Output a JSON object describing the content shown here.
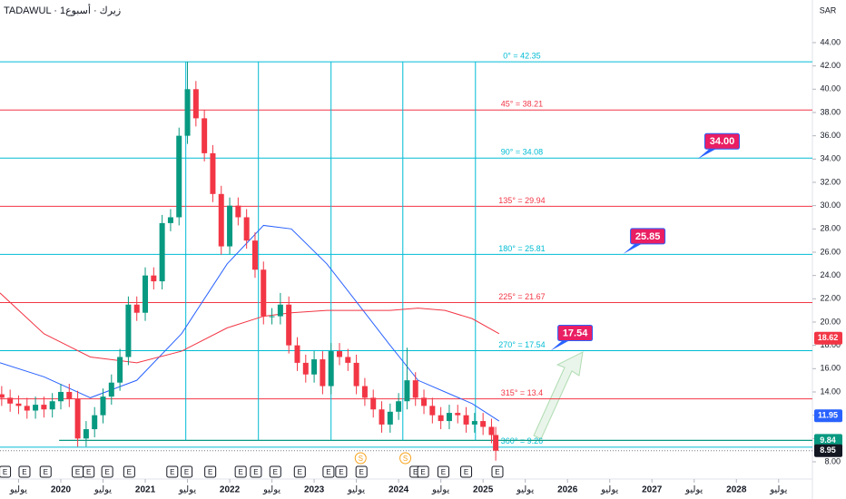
{
  "chart_data": {
    "type": "candlestick",
    "title": "TADAWUL · زيرك · أسبوع1",
    "currency": "SAR",
    "up_color": "#089981",
    "down_color": "#f23645",
    "x": [
      2019.3,
      2019.4,
      2019.5,
      2019.6,
      2019.7,
      2019.8,
      2019.9,
      2020.0,
      2020.1,
      2020.2,
      2020.3,
      2020.4,
      2020.5,
      2020.6,
      2020.7,
      2020.8,
      2020.9,
      2021.0,
      2021.1,
      2021.2,
      2021.3,
      2021.4,
      2021.5,
      2021.6,
      2021.7,
      2021.8,
      2021.9,
      2022.0,
      2022.1,
      2022.2,
      2022.3,
      2022.4,
      2022.5,
      2022.6,
      2022.7,
      2022.8,
      2022.9,
      2023.0,
      2023.1,
      2023.2,
      2023.3,
      2023.4,
      2023.5,
      2023.6,
      2023.7,
      2023.8,
      2023.9,
      2024.0,
      2024.1,
      2024.2,
      2024.3,
      2024.4,
      2024.5,
      2024.6,
      2024.7,
      2024.8,
      2024.9,
      2025.0,
      2025.1,
      2025.15
    ],
    "open": [
      13.8,
      13.5,
      13,
      12.8,
      12.4,
      12.9,
      12.5,
      13.2,
      14.0,
      13.4,
      10.0,
      10.8,
      12.0,
      13.6,
      14.8,
      17.0,
      21.5,
      20.8,
      24.0,
      23.5,
      28.5,
      29.0,
      36.0,
      40.0,
      37.5,
      34.5,
      31.0,
      26.5,
      30.0,
      29.0,
      27.0,
      24.5,
      20.5,
      20.5,
      21.5,
      18.0,
      16.5,
      15.5,
      16.8,
      14.5,
      17.5,
      17.0,
      16.5,
      14.5,
      13.5,
      12.5,
      11.2,
      12.3,
      13.2,
      15.0,
      13.5,
      12.8,
      12.0,
      11.5,
      12.2,
      12.0,
      11.2,
      11.5,
      11.0,
      10.3
    ],
    "high": [
      14.5,
      14.2,
      13.7,
      13.5,
      13.6,
      13.6,
      13.9,
      14.7,
      14.7,
      14.1,
      11.5,
      12.7,
      14.3,
      15.5,
      17.7,
      22.2,
      22.2,
      24.7,
      24.7,
      29.2,
      29.7,
      36.7,
      42.35,
      40.7,
      38.2,
      35.2,
      31.7,
      30.7,
      30.7,
      29.7,
      27.7,
      25.2,
      21.2,
      22.5,
      22.2,
      18.7,
      17.2,
      17.5,
      17.5,
      18.2,
      18.2,
      17.7,
      17.2,
      15.2,
      14.2,
      13.2,
      13,
      13.9,
      17.8,
      15.7,
      14.2,
      13.5,
      12.7,
      12.9,
      12.9,
      12.7,
      12.2,
      12.2,
      11.7,
      11.0
    ],
    "low": [
      12.8,
      12.3,
      12.1,
      11.7,
      11.7,
      11.8,
      11.8,
      12.5,
      12.7,
      9.3,
      9.3,
      10.1,
      11.3,
      12.9,
      14.1,
      16.3,
      20.1,
      20.1,
      22.8,
      22.8,
      27.8,
      28.3,
      35.3,
      36.8,
      33.8,
      30.3,
      25.8,
      25.8,
      28.3,
      26.3,
      23.8,
      19.8,
      19.8,
      19.8,
      17.3,
      15.8,
      14.8,
      14.8,
      13.8,
      13.8,
      16.3,
      15.8,
      13.8,
      12.8,
      11.8,
      10.5,
      10.5,
      11.6,
      12.5,
      12.8,
      12.1,
      11.3,
      10.8,
      10.8,
      11.3,
      10.5,
      10.5,
      10.3,
      9.6,
      8.1
    ],
    "close": [
      13.5,
      13,
      12.8,
      12.4,
      12.9,
      12.5,
      13.2,
      14.0,
      13.4,
      10.0,
      10.8,
      12.0,
      13.6,
      14.8,
      17.0,
      21.5,
      20.8,
      24.0,
      23.5,
      28.5,
      29.0,
      36.0,
      40.0,
      37.5,
      34.5,
      31.0,
      26.5,
      30.0,
      29.0,
      27.0,
      24.5,
      20.5,
      20.5,
      21.5,
      18.0,
      16.5,
      15.5,
      16.8,
      14.5,
      17.5,
      17.0,
      16.5,
      14.5,
      13.5,
      12.5,
      11.2,
      12.3,
      13.2,
      15.0,
      13.5,
      12.8,
      12.0,
      11.5,
      12.2,
      12.0,
      11.2,
      11.5,
      11.0,
      10.3,
      8.95
    ],
    "series": [
      {
        "color": "#2962ff",
        "x": [
          2019.28,
          2019.8,
          2020.35,
          2020.9,
          2021.43,
          2021.97,
          2022.4,
          2022.73,
          2023.15,
          2023.58,
          2023.9,
          2024.23,
          2024.55,
          2024.87,
          2025.19
        ],
        "values": [
          16.5,
          15.3,
          13.5,
          15.0,
          19.0,
          25.0,
          28.3,
          28.0,
          25.0,
          21.0,
          18.0,
          15.0,
          14.0,
          13.0,
          11.5
        ]
      },
      {
        "color": "#f23645",
        "x": [
          2019.28,
          2019.8,
          2020.35,
          2020.9,
          2021.43,
          2021.97,
          2022.4,
          2022.73,
          2023.15,
          2023.58,
          2023.9,
          2024.23,
          2024.55,
          2024.87,
          2025.19
        ],
        "values": [
          22.5,
          19.0,
          17.0,
          16.5,
          17.5,
          19.5,
          20.5,
          20.8,
          21.0,
          21.0,
          21.0,
          21.2,
          21.0,
          20.3,
          19.0
        ]
      }
    ],
    "levels": [
      {
        "label": "0° = 42.35",
        "value": 42.35,
        "color": "#00bcd4"
      },
      {
        "label": "45° = 38.21",
        "value": 38.21,
        "color": "#f23645"
      },
      {
        "label": "90° = 34.08",
        "value": 34.08,
        "color": "#00bcd4"
      },
      {
        "label": "135° = 29.94",
        "value": 29.94,
        "color": "#f23645"
      },
      {
        "label": "180° = 25.81",
        "value": 25.81,
        "color": "#00bcd4"
      },
      {
        "label": "225° = 21.67",
        "value": 21.67,
        "color": "#f23645"
      },
      {
        "label": "270° = 17.54",
        "value": 17.54,
        "color": "#00bcd4"
      },
      {
        "label": "315° = 13.4",
        "value": 13.4,
        "color": "#f23645"
      },
      {
        "label": "360° = 9.26",
        "value": 9.26,
        "color": "#00bcd4"
      }
    ],
    "cycle_lines": [
      2021.48,
      2022.34,
      2023.2,
      2024.05,
      2024.91
    ],
    "cycle_color": "#00bcd4",
    "support": {
      "value": 9.84,
      "x_start": 2019.98,
      "color": "#089981"
    },
    "last_price": 8.95,
    "callouts": [
      {
        "label": "34.00",
        "value": 34.0,
        "x": 2027.54
      },
      {
        "label": "25.85",
        "value": 25.85,
        "x": 2026.66
      },
      {
        "label": "17.54",
        "value": 17.54,
        "x": 2025.8
      }
    ],
    "callout_color": "#e91e63",
    "price_labels": [
      {
        "value": 18.62,
        "color": "#f23645"
      },
      {
        "value": 11.95,
        "color": "#2962ff"
      },
      {
        "value": 9.84,
        "color": "#089981"
      },
      {
        "value": 8.95,
        "color": "#131722"
      }
    ],
    "events": [
      {
        "x": 2019.34,
        "label": "E"
      },
      {
        "x": 2019.57,
        "label": "E"
      },
      {
        "x": 2019.82,
        "label": "E"
      },
      {
        "x": 2020.2,
        "label": "E"
      },
      {
        "x": 2020.33,
        "label": "E"
      },
      {
        "x": 2020.55,
        "label": "E"
      },
      {
        "x": 2020.81,
        "label": "E"
      },
      {
        "x": 2021.32,
        "label": "E"
      },
      {
        "x": 2021.49,
        "label": "E"
      },
      {
        "x": 2021.77,
        "label": "E"
      },
      {
        "x": 2022.13,
        "label": "E"
      },
      {
        "x": 2022.31,
        "label": "E"
      },
      {
        "x": 2022.54,
        "label": "E"
      },
      {
        "x": 2022.83,
        "label": "E"
      },
      {
        "x": 2023.17,
        "label": "E"
      },
      {
        "x": 2023.32,
        "label": "E"
      },
      {
        "x": 2023.56,
        "label": "E"
      },
      {
        "x": 2024.2,
        "label": "E"
      },
      {
        "x": 2024.29,
        "label": "E"
      },
      {
        "x": 2024.53,
        "label": "E"
      },
      {
        "x": 2024.8,
        "label": "E"
      },
      {
        "x": 2025.17,
        "label": "E"
      },
      {
        "x": 2023.55,
        "label": "S"
      },
      {
        "x": 2024.08,
        "label": "S"
      }
    ],
    "xlim": [
      2019.28,
      2028.9
    ],
    "ylim": [
      7.22,
      47.66
    ],
    "xticks": [
      {
        "value": 2019.5,
        "label": "يوليو"
      },
      2020,
      {
        "value": 2020.5,
        "label": "يوليو"
      },
      2021,
      {
        "value": 2021.5,
        "label": "يوليو"
      },
      2022,
      {
        "value": 2022.5,
        "label": "يوليو"
      },
      2023,
      {
        "value": 2023.5,
        "label": "يوليو"
      },
      2024,
      {
        "value": 2024.5,
        "label": "يوليو"
      },
      2025,
      {
        "value": 2025.5,
        "label": "يوليو"
      },
      2026,
      {
        "value": 2026.5,
        "label": "يوليو"
      },
      2027,
      {
        "value": 2027.5,
        "label": "يوليو"
      },
      2028,
      {
        "value": 2028.5,
        "label": "يوليو"
      }
    ],
    "yticks": [
      {
        "value": 8,
        "label": "8.00"
      },
      {
        "value": 10,
        "label": "10.00"
      },
      {
        "value": 12,
        "label": "12.00"
      },
      {
        "value": 14,
        "label": "14.00"
      },
      {
        "value": 16,
        "label": "16.00"
      },
      {
        "value": 18,
        "label": "18.00"
      },
      {
        "value": 20,
        "label": "20.00"
      },
      {
        "value": 22,
        "label": "22.00"
      },
      {
        "value": 24,
        "label": "24.00"
      },
      {
        "value": 26,
        "label": "26.00"
      },
      {
        "value": 28,
        "label": "28.00"
      },
      {
        "value": 30,
        "label": "30.00"
      },
      {
        "value": 32,
        "label": "32.00"
      },
      {
        "value": 34,
        "label": "34.00"
      },
      {
        "value": 36,
        "label": "36.00"
      },
      {
        "value": 38,
        "label": "38.00"
      },
      {
        "value": 40,
        "label": "40.00"
      },
      {
        "value": 42,
        "label": "42.00"
      },
      {
        "value": 44,
        "label": "44.00"
      }
    ]
  }
}
